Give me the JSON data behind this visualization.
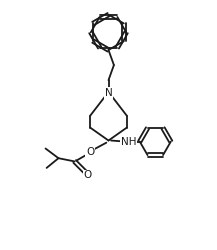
{
  "background_color": "#ffffff",
  "line_color": "#1a1a1a",
  "line_width": 1.3,
  "figsize": [
    2.17,
    2.5
  ],
  "dpi": 100,
  "xlim": [
    0,
    10
  ],
  "ylim": [
    0,
    11.5
  ]
}
